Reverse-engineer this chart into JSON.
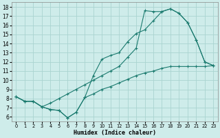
{
  "xlabel": "Humidex (Indice chaleur)",
  "bg_color": "#ceecea",
  "grid_color": "#aad4d0",
  "line_color": "#1a7a6e",
  "xlim": [
    -0.5,
    23.5
  ],
  "ylim": [
    5.5,
    18.5
  ],
  "xticks": [
    0,
    1,
    2,
    3,
    4,
    5,
    6,
    7,
    8,
    9,
    10,
    11,
    12,
    13,
    14,
    15,
    16,
    17,
    18,
    19,
    20,
    21,
    22,
    23
  ],
  "yticks": [
    6,
    7,
    8,
    9,
    10,
    11,
    12,
    13,
    14,
    15,
    16,
    17,
    18
  ],
  "line1_x": [
    0,
    1,
    2,
    3,
    4,
    5,
    6,
    7,
    8,
    9,
    10,
    11,
    12,
    13,
    14,
    15,
    16,
    17,
    18,
    19,
    20,
    21,
    22,
    23
  ],
  "line1_y": [
    8.2,
    7.7,
    7.7,
    7.1,
    6.8,
    6.7,
    5.9,
    6.5,
    8.1,
    8.5,
    9.0,
    9.3,
    9.7,
    10.1,
    10.5,
    10.8,
    11.0,
    11.3,
    11.5,
    11.5,
    11.5,
    11.5,
    11.5,
    11.6
  ],
  "line2_x": [
    0,
    1,
    2,
    3,
    4,
    5,
    6,
    7,
    8,
    9,
    10,
    11,
    12,
    13,
    14,
    15,
    16,
    17,
    18,
    19,
    20,
    21,
    22,
    23
  ],
  "line2_y": [
    8.2,
    7.7,
    7.7,
    7.1,
    6.8,
    6.7,
    5.9,
    6.5,
    8.1,
    10.5,
    12.3,
    12.7,
    13.0,
    14.2,
    15.1,
    15.5,
    16.5,
    17.5,
    17.8,
    17.3,
    16.3,
    14.4,
    12.0,
    11.6
  ],
  "line3_x": [
    0,
    1,
    2,
    3,
    4,
    5,
    6,
    7,
    8,
    9,
    10,
    11,
    12,
    13,
    14,
    15,
    16,
    17,
    18,
    19,
    20,
    21,
    22,
    23
  ],
  "line3_y": [
    8.2,
    7.7,
    7.7,
    7.1,
    7.5,
    8.0,
    8.5,
    9.0,
    9.5,
    10.0,
    10.5,
    11.0,
    11.5,
    12.5,
    13.5,
    17.6,
    17.5,
    17.5,
    17.8,
    17.3,
    16.3,
    14.4,
    12.0,
    11.6
  ]
}
